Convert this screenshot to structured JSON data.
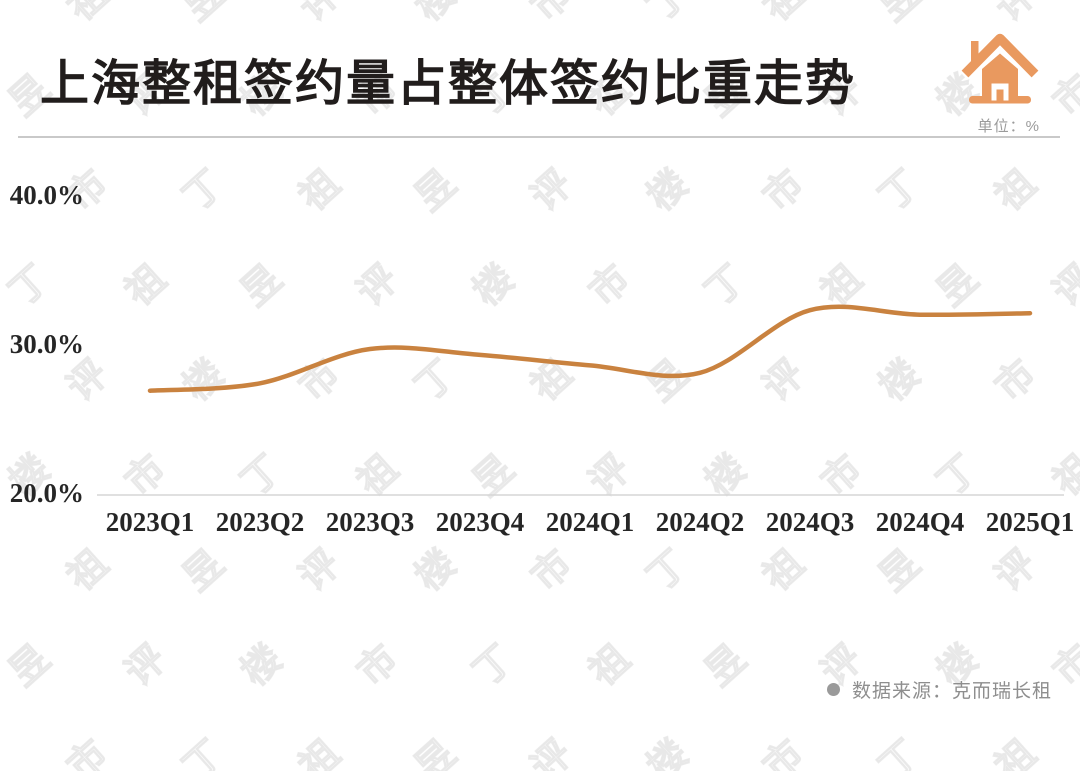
{
  "header": {
    "title": "上海整租签约量占整体签约比重走势",
    "unit_label": "单位：%"
  },
  "footer": {
    "source_label": "数据来源：克而瑞长租"
  },
  "watermark": {
    "text": "丁祖昱评楼市"
  },
  "colors": {
    "line": "#c9823f",
    "house_icon": "#e9995f",
    "axis_line": "#d6d6d6",
    "axis_text": "#262626",
    "muted_text": "#9b9b9b",
    "source_text": "#8e8e8e"
  },
  "chart_data": {
    "type": "line",
    "title": "上海整租签约量占整体签约比重走势",
    "ylabel": "%",
    "categories": [
      "2023Q1",
      "2023Q2",
      "2023Q3",
      "2023Q4",
      "2024Q1",
      "2024Q2",
      "2024Q3",
      "2024Q4",
      "2025Q1"
    ],
    "series": [
      {
        "name": "整租签约量占整体签约比重",
        "values": [
          27.0,
          27.5,
          29.8,
          29.4,
          28.7,
          28.2,
          32.4,
          32.1,
          32.2
        ]
      }
    ],
    "ylim": [
      20,
      40
    ],
    "yticks": [
      {
        "value": 40,
        "label": "40.0%"
      },
      {
        "value": 30,
        "label": "30.0%"
      },
      {
        "value": 20,
        "label": "20.0%"
      }
    ],
    "grid": false,
    "legend": "none",
    "line_style": "smooth"
  }
}
